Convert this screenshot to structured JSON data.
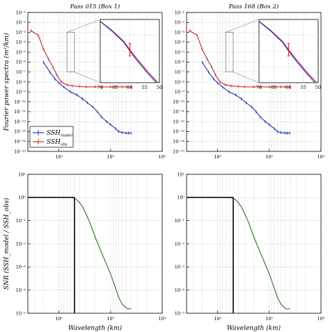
{
  "chart_data": [
    {
      "id": "spectrum-box1",
      "type": "line",
      "title": "Pass 015 (Box 1)",
      "xlabel": "",
      "ylabel": "Fourier power spectra (m²/km)",
      "x_scale": "log",
      "x_reversed": true,
      "y_scale": "log",
      "xlim": [
        400,
        1
      ],
      "ylim": [
        1e-15,
        0.1
      ],
      "x_tick_labels": [
        "10²",
        "10¹",
        "10⁰"
      ],
      "y_tick_labels": [
        "10⁻¹",
        "10⁻²",
        "10⁻³",
        "10⁻⁴",
        "10⁻⁵",
        "10⁻⁶",
        "10⁻⁷",
        "10⁻⁸",
        "10⁻⁹",
        "10⁻¹⁰",
        "10⁻¹¹",
        "10⁻¹²",
        "10⁻¹³",
        "10⁻¹⁴",
        "10⁻¹⁵"
      ],
      "legend": {
        "position": "lower-left",
        "entries": [
          "SSH_model",
          "SSH_obs"
        ]
      },
      "series": [
        {
          "name": "SSH_model",
          "color": "#2030d0",
          "x": [
            200,
            150,
            120,
            100,
            80,
            60,
            45,
            35,
            28,
            22,
            18,
            15,
            12,
            10,
            8,
            7,
            6,
            5,
            4.5,
            4
          ],
          "y": [
            1e-06,
            1e-07,
            2e-08,
            8e-09,
            3e-09,
            1e-09,
            5e-10,
            2e-10,
            8e-11,
            3e-11,
            1e-11,
            3e-12,
            1e-12,
            5e-13,
            2e-13,
            1e-13,
            8e-14,
            7e-14,
            7e-14,
            7e-14
          ]
        },
        {
          "name": "SSH_obs",
          "color": "#e02020",
          "x": [
            350,
            250,
            200,
            160,
            130,
            110,
            90,
            70,
            55,
            40,
            30,
            20,
            15,
            10,
            8,
            6,
            5,
            4
          ],
          "y": [
            0.0015,
            0.0005,
            2e-05,
            2e-06,
            3e-07,
            5e-08,
            1e-08,
            5e-09,
            4e-09,
            3.5e-09,
            3.2e-09,
            3.2e-09,
            3.2e-09,
            3.2e-09,
            3.3e-09,
            3.3e-09,
            3.2e-09,
            3.2e-09
          ]
        }
      ],
      "inset": {
        "xlim": [
          70,
          50
        ],
        "ylim": [
          1e-07,
          0.001
        ],
        "x_tick_labels": [
          "70",
          "65",
          "60",
          "55",
          "50"
        ],
        "errorbar": {
          "x": 60,
          "y": 1.2e-05
        }
      }
    },
    {
      "id": "spectrum-box2",
      "type": "line",
      "title": "Pass 168 (Box 2)",
      "xlabel": "",
      "ylabel": "",
      "x_scale": "log",
      "x_reversed": true,
      "y_scale": "log",
      "xlim": [
        400,
        1
      ],
      "ylim": [
        1e-15,
        0.1
      ],
      "x_tick_labels": [
        "10²",
        "10¹",
        "10⁰"
      ],
      "y_tick_labels": [
        "10⁻¹",
        "10⁻²",
        "10⁻³",
        "10⁻⁴",
        "10⁻⁵",
        "10⁻⁶",
        "10⁻⁷",
        "10⁻⁸",
        "10⁻⁹",
        "10⁻¹⁰",
        "10⁻¹¹",
        "10⁻¹²",
        "10⁻¹³",
        "10⁻¹⁴",
        "10⁻¹⁵"
      ],
      "series": [
        {
          "name": "SSH_model",
          "color": "#2030d0",
          "x": [
            200,
            150,
            120,
            100,
            80,
            60,
            45,
            35,
            28,
            22,
            18,
            15,
            12,
            10,
            8,
            7,
            6,
            5,
            4.5,
            4
          ],
          "y": [
            1e-06,
            1e-07,
            2e-08,
            8e-09,
            3e-09,
            1e-09,
            5e-10,
            2e-10,
            8e-11,
            3e-11,
            1e-11,
            3e-12,
            1e-12,
            5e-13,
            2e-13,
            1e-13,
            8e-14,
            7e-14,
            7e-14,
            7e-14
          ]
        },
        {
          "name": "SSH_obs",
          "color": "#e02020",
          "x": [
            350,
            250,
            200,
            160,
            130,
            110,
            90,
            70,
            55,
            40,
            30,
            20,
            15,
            10,
            8,
            6,
            5,
            4
          ],
          "y": [
            0.0015,
            0.0005,
            2e-05,
            2e-06,
            3e-07,
            5e-08,
            1e-08,
            5e-09,
            4e-09,
            3.5e-09,
            3.2e-09,
            3.2e-09,
            3.2e-09,
            3.2e-09,
            3.3e-09,
            3.3e-09,
            3.2e-09,
            3.2e-09
          ]
        }
      ],
      "inset": {
        "xlim": [
          70,
          50
        ],
        "ylim": [
          1e-07,
          0.001
        ],
        "x_tick_labels": [
          "70",
          "65",
          "60",
          "55",
          "50"
        ],
        "errorbar": {
          "x": 60,
          "y": 1.2e-05
        }
      }
    },
    {
      "id": "snr-box1",
      "type": "line",
      "title": "",
      "xlabel": "Wavelength (km)",
      "ylabel": "SNR (SSH_model / SSH_obs)",
      "x_scale": "log",
      "x_reversed": true,
      "y_scale": "log",
      "xlim": [
        400,
        1
      ],
      "ylim": [
        1e-05,
        10
      ],
      "x_tick_labels": [
        "10²",
        "10¹",
        "10⁰"
      ],
      "y_tick_labels": [
        "10¹",
        "10⁰",
        "10⁻¹",
        "10⁻²",
        "10⁻³",
        "10⁻⁴",
        "10⁻⁵"
      ],
      "threshold_wavelength_km": 50,
      "series": [
        {
          "name": "SNR",
          "color": "#1a7a1a",
          "x": [
            350,
            200,
            100,
            60,
            50,
            45,
            40,
            35,
            30,
            25,
            20,
            16,
            13,
            10,
            8,
            7,
            6,
            5,
            4.5,
            4
          ],
          "y": [
            1.0,
            1.0,
            1.0,
            1.0,
            0.95,
            0.8,
            0.6,
            0.4,
            0.2,
            0.08,
            0.02,
            0.006,
            0.002,
            0.0005,
            0.00012,
            5e-05,
            2.5e-05,
            1.7e-05,
            1.5e-05,
            1.6e-05
          ]
        }
      ]
    },
    {
      "id": "snr-box2",
      "type": "line",
      "title": "",
      "xlabel": "Wavelength (km)",
      "ylabel": "",
      "x_scale": "log",
      "x_reversed": true,
      "y_scale": "log",
      "xlim": [
        400,
        1
      ],
      "ylim": [
        1e-05,
        10
      ],
      "x_tick_labels": [
        "10²",
        "10¹",
        "10⁰"
      ],
      "y_tick_labels": [
        "10¹",
        "10⁰",
        "10⁻¹",
        "10⁻²",
        "10⁻³",
        "10⁻⁴",
        "10⁻⁵"
      ],
      "threshold_wavelength_km": 50,
      "series": [
        {
          "name": "SNR",
          "color": "#1a7a1a",
          "x": [
            350,
            200,
            100,
            60,
            50,
            45,
            40,
            35,
            30,
            25,
            20,
            16,
            13,
            10,
            8,
            7,
            6,
            5,
            4.5,
            4
          ],
          "y": [
            1.0,
            1.0,
            1.0,
            1.0,
            0.95,
            0.8,
            0.6,
            0.4,
            0.2,
            0.08,
            0.02,
            0.006,
            0.002,
            0.0005,
            0.00012,
            5e-05,
            2.5e-05,
            1.7e-05,
            1.5e-05,
            1.6e-05
          ]
        }
      ]
    }
  ]
}
